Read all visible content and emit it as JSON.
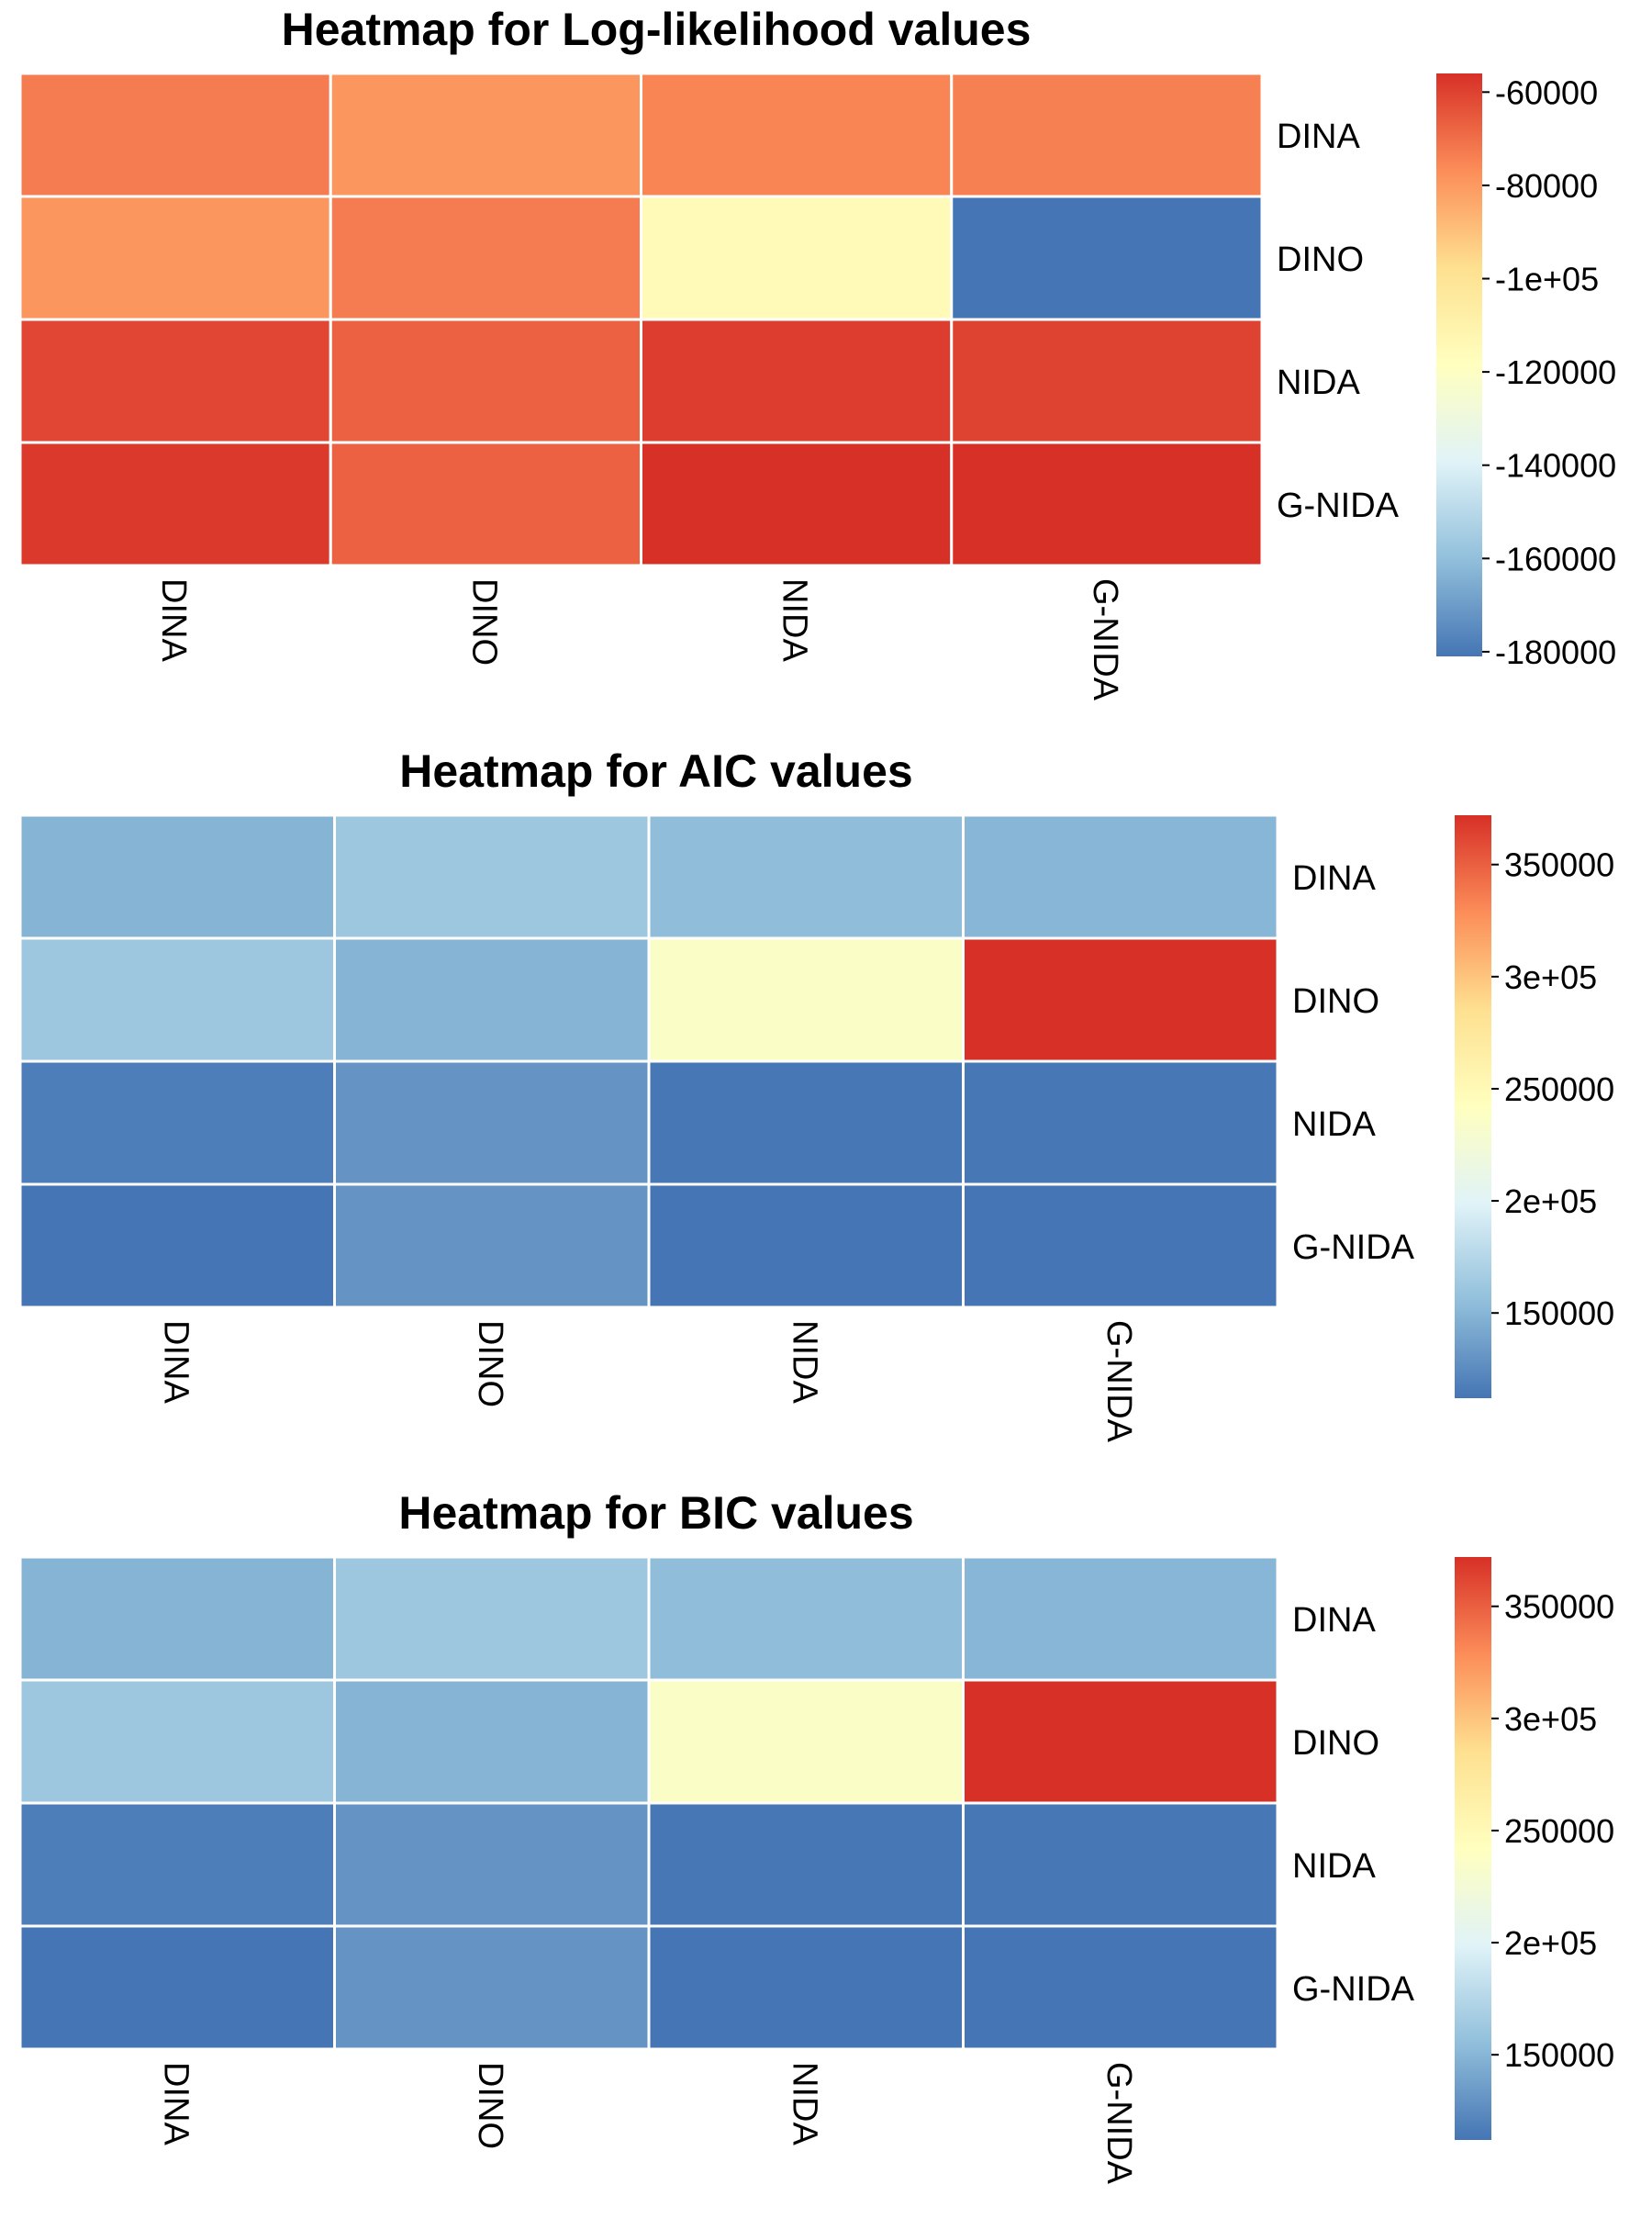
{
  "colors": {
    "scale": [
      "#4575b4",
      "#91bfdb",
      "#e0f3f8",
      "#ffffbf",
      "#fee090",
      "#fc8d59",
      "#d73027"
    ],
    "cell_border": "#ffffff",
    "text": "#000000"
  },
  "chart_data": [
    {
      "type": "heatmap",
      "title": "Heatmap for Log-likelihood values",
      "rows": [
        "DINA",
        "DINO",
        "NIDA",
        "G-NIDA"
      ],
      "columns": [
        "DINA",
        "DINO",
        "NIDA",
        "G-NIDA"
      ],
      "values": [
        [
          -73000,
          -79000,
          -75000,
          -74000
        ],
        [
          -79000,
          -73000,
          -115000,
          -181000
        ],
        [
          -61000,
          -67000,
          -59000,
          -60000
        ],
        [
          -58000,
          -67000,
          -56000,
          -56000
        ]
      ],
      "colorbar": {
        "min": -181000,
        "max": -56000,
        "ticks": [
          -60000,
          -80000,
          -100000,
          -120000,
          -140000,
          -160000,
          -180000
        ],
        "tick_labels": [
          "-60000",
          "-80000",
          "-1e+05",
          "-120000",
          "-140000",
          "-160000",
          "-180000"
        ]
      }
    },
    {
      "type": "heatmap",
      "title": "Heatmap for AIC values",
      "rows": [
        "DINA",
        "DINO",
        "NIDA",
        "G-NIDA"
      ],
      "columns": [
        "DINA",
        "DINO",
        "NIDA",
        "G-NIDA"
      ],
      "values": [
        [
          149000,
          162000,
          154000,
          150000
        ],
        [
          162000,
          149000,
          236000,
          372000
        ],
        [
          117000,
          130000,
          113000,
          113000
        ],
        [
          112000,
          130000,
          112000,
          112000
        ]
      ],
      "colorbar": {
        "min": 112000,
        "max": 372000,
        "ticks": [
          350000,
          300000,
          250000,
          200000,
          150000
        ],
        "tick_labels": [
          "350000",
          "3e+05",
          "250000",
          "2e+05",
          "150000"
        ]
      }
    },
    {
      "type": "heatmap",
      "title": "Heatmap for BIC values",
      "rows": [
        "DINA",
        "DINO",
        "NIDA",
        "G-NIDA"
      ],
      "columns": [
        "DINA",
        "DINO",
        "NIDA",
        "G-NIDA"
      ],
      "values": [
        [
          149000,
          162000,
          154000,
          150000
        ],
        [
          162000,
          149000,
          236000,
          372000
        ],
        [
          117000,
          130000,
          113000,
          113000
        ],
        [
          112000,
          130000,
          112000,
          112000
        ]
      ],
      "colorbar": {
        "min": 112000,
        "max": 372000,
        "ticks": [
          350000,
          300000,
          250000,
          200000,
          150000
        ],
        "tick_labels": [
          "350000",
          "3e+05",
          "250000",
          "2e+05",
          "150000"
        ]
      }
    }
  ]
}
